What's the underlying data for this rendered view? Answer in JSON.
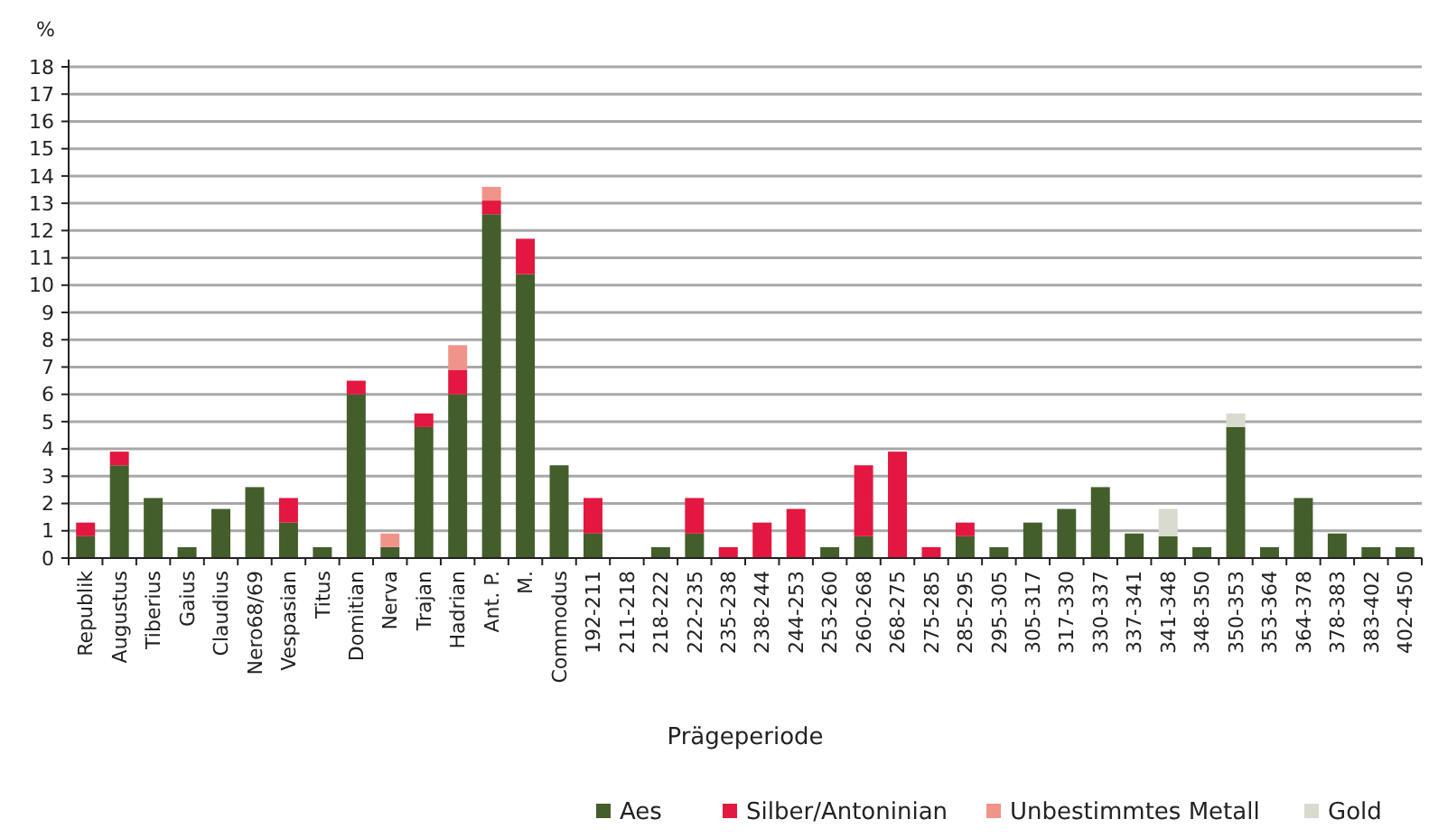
{
  "chart_data": {
    "type": "bar",
    "stacked": true,
    "ylabel": "%",
    "xlabel": "Prägeperiode",
    "legend": "bottom",
    "grid": "y",
    "categories": [
      "Republik",
      "Augustus",
      "Tiberius",
      "Gaius",
      "Claudius",
      "Nero68/69",
      "Vespasian",
      "Titus",
      "Domitian",
      "Nerva",
      "Trajan",
      "Hadrian",
      "Ant. P.",
      "M.",
      "Commodus",
      "192-211",
      "211-218",
      "218-222",
      "222-235",
      "235-238",
      "238-244",
      "244-253",
      "253-260",
      "260-268",
      "268-275",
      "275-285",
      "285-295",
      "295-305",
      "305-317",
      "317-330",
      "330-337",
      "337-341",
      "341-348",
      "348-350",
      "350-353",
      "353-364",
      "364-378",
      "378-383",
      "383-402",
      "402-450"
    ],
    "ylim": [
      0,
      18
    ],
    "yticks": [
      0,
      1,
      2,
      3,
      4,
      5,
      6,
      7,
      8,
      9,
      10,
      11,
      12,
      13,
      14,
      15,
      16,
      17,
      18
    ],
    "series": [
      {
        "name": "Aes",
        "color": "#445e2b",
        "values": [
          0.8,
          3.4,
          2.2,
          0.4,
          1.8,
          2.6,
          1.3,
          0.4,
          6.0,
          0.4,
          4.8,
          6.0,
          12.6,
          10.4,
          3.4,
          0.9,
          null,
          0.4,
          0.9,
          null,
          null,
          null,
          0.4,
          0.8,
          null,
          null,
          0.8,
          0.4,
          1.3,
          1.8,
          2.6,
          0.9,
          0.8,
          0.4,
          4.8,
          0.4,
          2.2,
          0.9,
          0.4,
          0.4
        ]
      },
      {
        "name": "Silber/Antoninian",
        "color": "#e31740",
        "values": [
          0.5,
          0.5,
          null,
          null,
          null,
          null,
          0.9,
          null,
          0.5,
          null,
          0.5,
          0.9,
          0.5,
          1.3,
          null,
          1.3,
          null,
          null,
          1.3,
          0.4,
          1.3,
          1.8,
          null,
          2.6,
          3.9,
          0.4,
          0.5,
          null,
          null,
          null,
          null,
          null,
          null,
          null,
          null,
          null,
          null,
          null,
          null,
          null
        ]
      },
      {
        "name": "Unbestimmtes Metall",
        "color": "#f0948a",
        "values": [
          null,
          null,
          null,
          null,
          null,
          null,
          null,
          null,
          null,
          0.5,
          null,
          0.9,
          0.5,
          null,
          null,
          null,
          null,
          null,
          null,
          null,
          null,
          null,
          null,
          null,
          null,
          null,
          null,
          null,
          null,
          null,
          null,
          null,
          null,
          null,
          null,
          null,
          null,
          null,
          null,
          null
        ]
      },
      {
        "name": "Gold",
        "color": "#d9dbcf",
        "values": [
          null,
          null,
          null,
          null,
          null,
          null,
          null,
          null,
          null,
          null,
          null,
          null,
          null,
          null,
          null,
          null,
          null,
          null,
          null,
          null,
          null,
          null,
          null,
          null,
          null,
          null,
          null,
          null,
          null,
          null,
          null,
          null,
          1.0,
          null,
          0.5,
          null,
          null,
          null,
          null,
          null
        ]
      }
    ]
  }
}
